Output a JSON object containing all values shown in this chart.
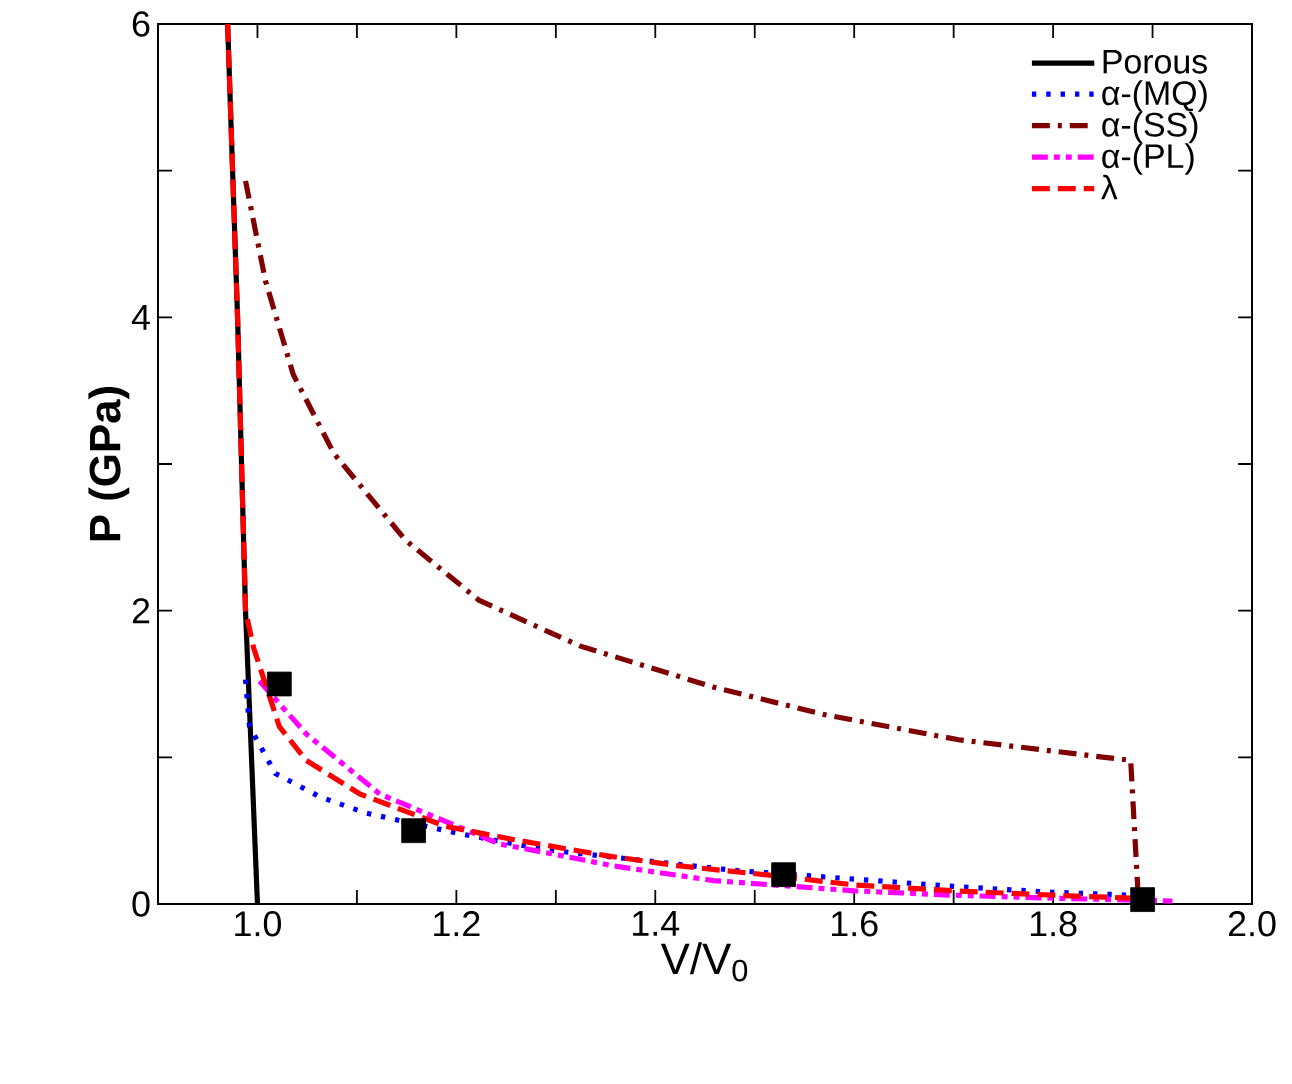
{
  "chart_data": {
    "type": "line",
    "xlabel": "V/V$_{0}$",
    "ylabel": "P (GPa)",
    "xlim": [
      0.9,
      2.0
    ],
    "ylim": [
      0,
      6
    ],
    "xticks": [
      {
        "value": 0.9,
        "label": null
      },
      {
        "value": 1,
        "label": "1.0"
      },
      {
        "value": 1.1,
        "label": null
      },
      1.2,
      {
        "value": 1.3,
        "label": null
      },
      1.4,
      {
        "value": 1.5,
        "label": null
      },
      1.6,
      {
        "value": 1.7,
        "label": null
      },
      1.8,
      {
        "value": 1.9,
        "label": null
      },
      {
        "value": 2,
        "label": "2.0"
      }
    ],
    "yticks": [
      0,
      {
        "value": 1,
        "label": null
      },
      2,
      {
        "value": 3,
        "label": null
      },
      4,
      {
        "value": 5,
        "label": null
      },
      6
    ],
    "legend": "top right",
    "grid": false,
    "series": [
      {
        "name": "Porous",
        "color": "#000000",
        "line_style": "solid",
        "x": [
          0.97,
          0.98,
          0.988,
          1.0
        ],
        "values": [
          6,
          4,
          2,
          0
        ]
      },
      {
        "name": "α-(MQ)",
        "color": "#0000ff",
        "line_style": "dotted",
        "x": [
          0.988,
          0.992,
          1.018,
          1.063,
          1.109,
          1.203,
          1.29,
          1.384,
          1.478,
          1.6,
          1.7,
          1.8,
          1.88
        ],
        "values": [
          1.53,
          1.21,
          0.89,
          0.73,
          0.62,
          0.48,
          0.37,
          0.3,
          0.23,
          0.17,
          0.12,
          0.08,
          0.06
        ]
      },
      {
        "name": "α-(SS)",
        "color": "#800000",
        "line_style": "dashdot",
        "x": [
          0.988,
          1.008,
          1.036,
          1.077,
          1.149,
          1.223,
          1.324,
          1.458,
          1.571,
          1.705,
          1.852,
          1.878,
          1.886
        ],
        "values": [
          4.93,
          4.25,
          3.61,
          3.07,
          2.48,
          2.07,
          1.76,
          1.48,
          1.29,
          1.12,
          1.0,
          0.98,
          0
        ]
      },
      {
        "name": "α-(PL)",
        "color": "#ff00ff",
        "line_style": "dashdotdot",
        "x": [
          1.002,
          1.049,
          1.123,
          1.169,
          1.243,
          1.298,
          1.358,
          1.458,
          1.6,
          1.7,
          1.8,
          1.92
        ],
        "values": [
          1.52,
          1.16,
          0.75,
          0.62,
          0.41,
          0.34,
          0.26,
          0.16,
          0.09,
          0.06,
          0.04,
          0.02
        ]
      },
      {
        "name": "λ",
        "color": "#ff0000",
        "line_style": "dashed",
        "x": [
          0.97,
          0.98,
          0.988,
          0.996,
          1.022,
          1.049,
          1.103,
          1.189,
          1.257,
          1.35,
          1.424,
          1.51,
          1.6,
          1.7,
          1.8,
          1.88
        ],
        "values": [
          6,
          4,
          2,
          1.75,
          1.21,
          0.98,
          0.75,
          0.53,
          0.44,
          0.33,
          0.26,
          0.2,
          0.13,
          0.09,
          0.06,
          0.04
        ]
      },
      {
        "type": "scatter",
        "marker": "square",
        "color": "#000000",
        "x": [
          1.022,
          1.157,
          1.529,
          1.89
        ],
        "values": [
          1.5,
          0.5,
          0.2,
          0.03
        ]
      }
    ]
  }
}
